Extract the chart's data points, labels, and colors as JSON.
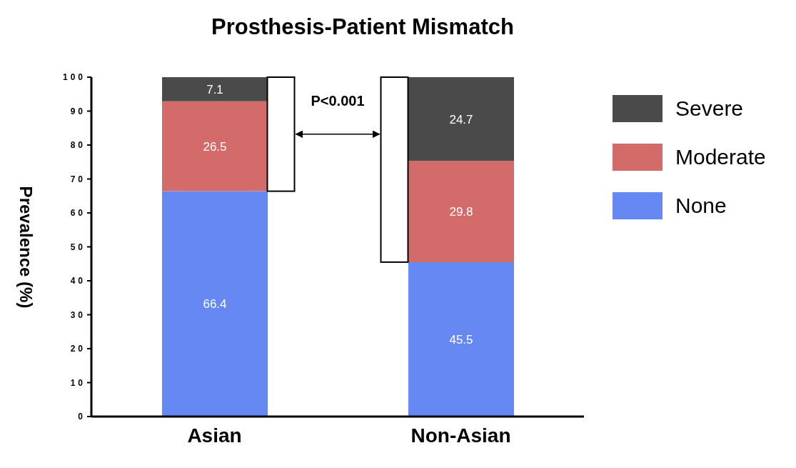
{
  "chart_data": {
    "type": "bar",
    "title": "Prosthesis-Patient Mismatch",
    "ylabel": "Prevalence (%)",
    "categories": [
      "Asian",
      "Non-Asian"
    ],
    "stacked": true,
    "series": [
      {
        "name": "None",
        "color": "#6688f2",
        "values": [
          66.4,
          45.5
        ]
      },
      {
        "name": "Moderate",
        "color": "#d46b6b",
        "values": [
          26.5,
          29.8
        ]
      },
      {
        "name": "Severe",
        "color": "#4a4a4a",
        "values": [
          7.1,
          24.7
        ]
      }
    ],
    "ylim": [
      0,
      100
    ],
    "yticks": [
      0,
      10,
      20,
      30,
      40,
      50,
      60,
      70,
      80,
      90,
      100
    ],
    "data_labels": true,
    "legend": "top right",
    "grid": false,
    "annotations": [
      "P<0.001"
    ]
  }
}
